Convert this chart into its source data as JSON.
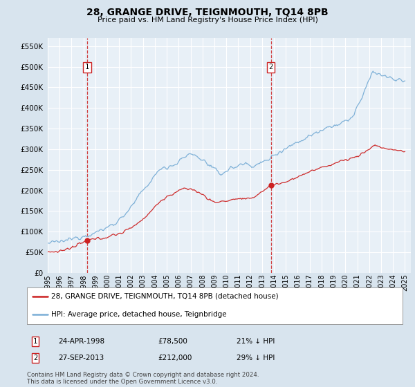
{
  "title": "28, GRANGE DRIVE, TEIGNMOUTH, TQ14 8PB",
  "subtitle": "Price paid vs. HM Land Registry's House Price Index (HPI)",
  "hpi_color": "#7aaed6",
  "price_color": "#cc2222",
  "vline_color": "#cc2222",
  "background_color": "#d8e4ee",
  "plot_bg_color": "#e8f0f7",
  "grid_color": "#ffffff",
  "ylim": [
    0,
    570000
  ],
  "yticks": [
    0,
    50000,
    100000,
    150000,
    200000,
    250000,
    300000,
    350000,
    400000,
    450000,
    500000,
    550000
  ],
  "sale1_date": 1998.31,
  "sale1_price": 78500,
  "sale1_label": "1",
  "sale2_date": 2013.74,
  "sale2_price": 212000,
  "sale2_label": "2",
  "legend_line1": "28, GRANGE DRIVE, TEIGNMOUTH, TQ14 8PB (detached house)",
  "legend_line2": "HPI: Average price, detached house, Teignbridge",
  "table_row1": [
    "1",
    "24-APR-1998",
    "£78,500",
    "21% ↓ HPI"
  ],
  "table_row2": [
    "2",
    "27-SEP-2013",
    "£212,000",
    "29% ↓ HPI"
  ],
  "footnote": "Contains HM Land Registry data © Crown copyright and database right 2024.\nThis data is licensed under the Open Government Licence v3.0.",
  "xmin": 1995,
  "xmax": 2025.5,
  "hpi_nodes_x": [
    1995.0,
    1996.0,
    1997.0,
    1998.0,
    1999.0,
    2000.0,
    2001.0,
    2002.0,
    2003.0,
    2004.0,
    2004.5,
    2005.5,
    2007.0,
    2008.0,
    2009.0,
    2009.5,
    2010.5,
    2011.5,
    2012.5,
    2013.5,
    2014.5,
    2015.5,
    2016.5,
    2017.5,
    2018.5,
    2019.5,
    2020.5,
    2021.5,
    2022.3,
    2023.0,
    2024.0,
    2025.0
  ],
  "hpi_nodes_y": [
    72000,
    75000,
    82000,
    90000,
    97000,
    110000,
    128000,
    158000,
    200000,
    235000,
    255000,
    260000,
    290000,
    275000,
    250000,
    240000,
    255000,
    265000,
    260000,
    275000,
    295000,
    310000,
    325000,
    340000,
    355000,
    360000,
    375000,
    430000,
    490000,
    480000,
    470000,
    465000
  ],
  "pp_nodes_x": [
    1995.0,
    1996.0,
    1997.0,
    1998.31,
    1999.0,
    2000.0,
    2001.5,
    2003.0,
    2004.5,
    2006.0,
    2007.0,
    2008.0,
    2009.0,
    2010.0,
    2011.0,
    2012.0,
    2013.74,
    2015.0,
    2016.5,
    2018.0,
    2019.5,
    2021.0,
    2022.5,
    2023.5,
    2025.0
  ],
  "pp_nodes_y": [
    50000,
    53000,
    60000,
    78500,
    82000,
    87000,
    100000,
    130000,
    175000,
    200000,
    205000,
    190000,
    170000,
    175000,
    180000,
    178000,
    212000,
    220000,
    240000,
    255000,
    270000,
    282000,
    310000,
    300000,
    295000
  ]
}
